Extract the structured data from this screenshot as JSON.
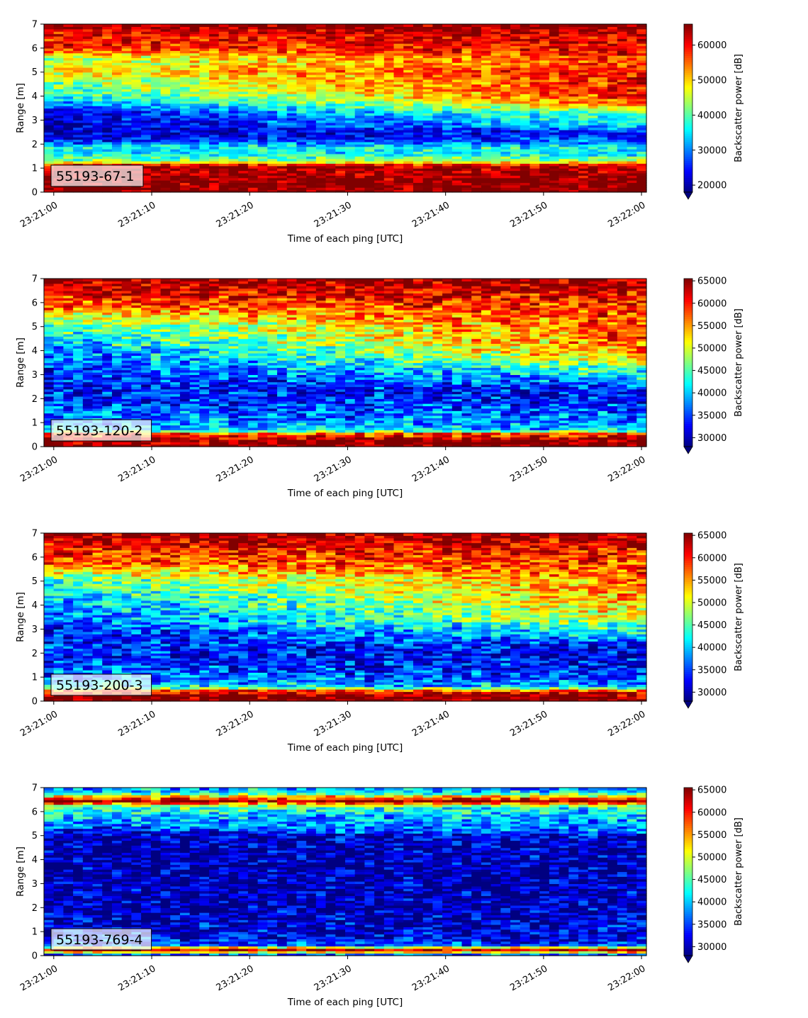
{
  "chart_data": [
    {
      "type": "heatmap",
      "panel_label": "55193-67-1",
      "xlabel": "Time of each ping [UTC]",
      "ylabel": "Range [m]",
      "xticks": [
        "23:21:00",
        "23:21:10",
        "23:21:20",
        "23:21:30",
        "23:21:40",
        "23:21:50",
        "23:22:00"
      ],
      "xlim_seconds": [
        -1,
        60.5
      ],
      "yticks": [
        "0",
        "1",
        "2",
        "3",
        "4",
        "5",
        "6",
        "7"
      ],
      "ylim": [
        0,
        7
      ],
      "colorbar": {
        "label": "Backscatter power [dB]",
        "colormap": "jet",
        "min": 18000,
        "max": 66000,
        "ticks": [
          20000,
          30000,
          40000,
          50000,
          60000
        ],
        "tick_labels": [
          "20000",
          "30000",
          "40000",
          "50000",
          "60000"
        ],
        "extend": "min"
      },
      "profile_stops": [
        {
          "range": 0.0,
          "start": 66000,
          "end": 66000
        },
        {
          "range": 0.25,
          "start": 66000,
          "end": 66000
        },
        {
          "range": 1.1,
          "start": 64000,
          "end": 64000
        },
        {
          "range": 1.3,
          "start": 43000,
          "end": 43000
        },
        {
          "range": 1.6,
          "start": 36000,
          "end": 36000
        },
        {
          "range": 1.9,
          "start": 36000,
          "end": 36000
        },
        {
          "range": 2.1,
          "start": 26000,
          "end": 29000
        },
        {
          "range": 2.5,
          "start": 21000,
          "end": 24000
        },
        {
          "range": 2.8,
          "start": 21000,
          "end": 36000
        },
        {
          "range": 3.3,
          "start": 24000,
          "end": 40000
        },
        {
          "range": 3.7,
          "start": 30000,
          "end": 56000
        },
        {
          "range": 4.2,
          "start": 39000,
          "end": 60000
        },
        {
          "range": 4.7,
          "start": 43000,
          "end": 59000
        },
        {
          "range": 5.1,
          "start": 49000,
          "end": 60000
        },
        {
          "range": 5.5,
          "start": 43000,
          "end": 58000
        },
        {
          "range": 6.0,
          "start": 58000,
          "end": 60000
        },
        {
          "range": 6.6,
          "start": 61000,
          "end": 62000
        },
        {
          "range": 7.0,
          "start": 66000,
          "end": 66000
        }
      ]
    },
    {
      "type": "heatmap",
      "panel_label": "55193-120-2",
      "xlabel": "Time of each ping [UTC]",
      "ylabel": "Range [m]",
      "xticks": [
        "23:21:00",
        "23:21:10",
        "23:21:20",
        "23:21:30",
        "23:21:40",
        "23:21:50",
        "23:22:00"
      ],
      "xlim_seconds": [
        -1,
        60.5
      ],
      "yticks": [
        "0",
        "1",
        "2",
        "3",
        "4",
        "5",
        "6",
        "7"
      ],
      "ylim": [
        0,
        7
      ],
      "colorbar": {
        "label": "Backscatter power [dB]",
        "colormap": "jet",
        "min": 28000,
        "max": 65500,
        "ticks": [
          30000,
          35000,
          40000,
          45000,
          50000,
          55000,
          60000,
          65000
        ],
        "tick_labels": [
          "30000",
          "35000",
          "40000",
          "45000",
          "50000",
          "55000",
          "60000",
          "65000"
        ],
        "extend": "min"
      },
      "profile_stops": [
        {
          "range": 0.0,
          "start": 65500,
          "end": 65500
        },
        {
          "range": 0.3,
          "start": 65000,
          "end": 65000
        },
        {
          "range": 0.55,
          "start": 57000,
          "end": 58000
        },
        {
          "range": 0.7,
          "start": 41000,
          "end": 39000
        },
        {
          "range": 1.0,
          "start": 38000,
          "end": 40000
        },
        {
          "range": 1.3,
          "start": 37000,
          "end": 36000
        },
        {
          "range": 1.8,
          "start": 35000,
          "end": 35000
        },
        {
          "range": 2.3,
          "start": 33000,
          "end": 33000
        },
        {
          "range": 2.7,
          "start": 33000,
          "end": 38000
        },
        {
          "range": 3.2,
          "start": 34000,
          "end": 44000
        },
        {
          "range": 3.8,
          "start": 37000,
          "end": 54000
        },
        {
          "range": 4.3,
          "start": 40000,
          "end": 57000
        },
        {
          "range": 4.9,
          "start": 44000,
          "end": 58000
        },
        {
          "range": 5.4,
          "start": 50000,
          "end": 59000
        },
        {
          "range": 6.0,
          "start": 59000,
          "end": 60000
        },
        {
          "range": 6.5,
          "start": 62000,
          "end": 62000
        },
        {
          "range": 7.0,
          "start": 65500,
          "end": 65500
        }
      ]
    },
    {
      "type": "heatmap",
      "panel_label": "55193-200-3",
      "xlabel": "Time of each ping [UTC]",
      "ylabel": "Range [m]",
      "xticks": [
        "23:21:00",
        "23:21:10",
        "23:21:20",
        "23:21:30",
        "23:21:40",
        "23:21:50",
        "23:22:00"
      ],
      "xlim_seconds": [
        -1,
        60.5
      ],
      "yticks": [
        "0",
        "1",
        "2",
        "3",
        "4",
        "5",
        "6",
        "7"
      ],
      "ylim": [
        0,
        7
      ],
      "colorbar": {
        "label": "Backscatter power [dB]",
        "colormap": "jet",
        "min": 28000,
        "max": 65500,
        "ticks": [
          30000,
          35000,
          40000,
          45000,
          50000,
          55000,
          60000,
          65000
        ],
        "tick_labels": [
          "30000",
          "35000",
          "40000",
          "45000",
          "50000",
          "55000",
          "60000",
          "65000"
        ],
        "extend": "min"
      },
      "profile_stops": [
        {
          "range": 0.0,
          "start": 65500,
          "end": 65500
        },
        {
          "range": 0.25,
          "start": 65000,
          "end": 65000
        },
        {
          "range": 0.45,
          "start": 57000,
          "end": 58000
        },
        {
          "range": 0.6,
          "start": 42000,
          "end": 38000
        },
        {
          "range": 1.0,
          "start": 37000,
          "end": 35000
        },
        {
          "range": 1.5,
          "start": 35000,
          "end": 33000
        },
        {
          "range": 2.0,
          "start": 34000,
          "end": 32000
        },
        {
          "range": 2.5,
          "start": 34000,
          "end": 36000
        },
        {
          "range": 3.0,
          "start": 34000,
          "end": 44000
        },
        {
          "range": 3.5,
          "start": 36000,
          "end": 50000
        },
        {
          "range": 4.0,
          "start": 38000,
          "end": 54000
        },
        {
          "range": 4.6,
          "start": 42000,
          "end": 56000
        },
        {
          "range": 5.1,
          "start": 45000,
          "end": 57000
        },
        {
          "range": 5.6,
          "start": 55000,
          "end": 58000
        },
        {
          "range": 6.2,
          "start": 60000,
          "end": 60000
        },
        {
          "range": 6.6,
          "start": 63000,
          "end": 63000
        },
        {
          "range": 7.0,
          "start": 65500,
          "end": 65500
        }
      ]
    },
    {
      "type": "heatmap",
      "panel_label": "55193-769-4",
      "xlabel": "Time of each ping [UTC]",
      "ylabel": "Range [m]",
      "xticks": [
        "23:21:00",
        "23:21:10",
        "23:21:20",
        "23:21:30",
        "23:21:40",
        "23:21:50",
        "23:22:00"
      ],
      "xlim_seconds": [
        -1,
        60.5
      ],
      "yticks": [
        "0",
        "1",
        "2",
        "3",
        "4",
        "5",
        "6",
        "7"
      ],
      "ylim": [
        0,
        7
      ],
      "colorbar": {
        "label": "Backscatter power [dB]",
        "colormap": "jet",
        "min": 28000,
        "max": 65500,
        "ticks": [
          30000,
          35000,
          40000,
          45000,
          50000,
          55000,
          60000,
          65000
        ],
        "tick_labels": [
          "30000",
          "35000",
          "40000",
          "45000",
          "50000",
          "55000",
          "60000",
          "65000"
        ],
        "extend": "min"
      },
      "profile_stops": [
        {
          "range": 0.0,
          "start": 30000,
          "end": 30000
        },
        {
          "range": 0.2,
          "start": 60000,
          "end": 60000
        },
        {
          "range": 0.3,
          "start": 65500,
          "end": 65500
        },
        {
          "range": 0.4,
          "start": 36000,
          "end": 36000
        },
        {
          "range": 0.8,
          "start": 33000,
          "end": 32000
        },
        {
          "range": 1.3,
          "start": 31000,
          "end": 31000
        },
        {
          "range": 2.0,
          "start": 30000,
          "end": 30000
        },
        {
          "range": 3.0,
          "start": 29000,
          "end": 30000
        },
        {
          "range": 4.0,
          "start": 29000,
          "end": 30000
        },
        {
          "range": 5.0,
          "start": 29500,
          "end": 32000
        },
        {
          "range": 5.3,
          "start": 35000,
          "end": 37000
        },
        {
          "range": 5.8,
          "start": 40000,
          "end": 40000
        },
        {
          "range": 6.2,
          "start": 45000,
          "end": 43000
        },
        {
          "range": 6.45,
          "start": 65500,
          "end": 65500
        },
        {
          "range": 6.65,
          "start": 52000,
          "end": 52000
        },
        {
          "range": 6.8,
          "start": 41000,
          "end": 41000
        },
        {
          "range": 7.0,
          "start": 38000,
          "end": 38000
        }
      ]
    }
  ]
}
